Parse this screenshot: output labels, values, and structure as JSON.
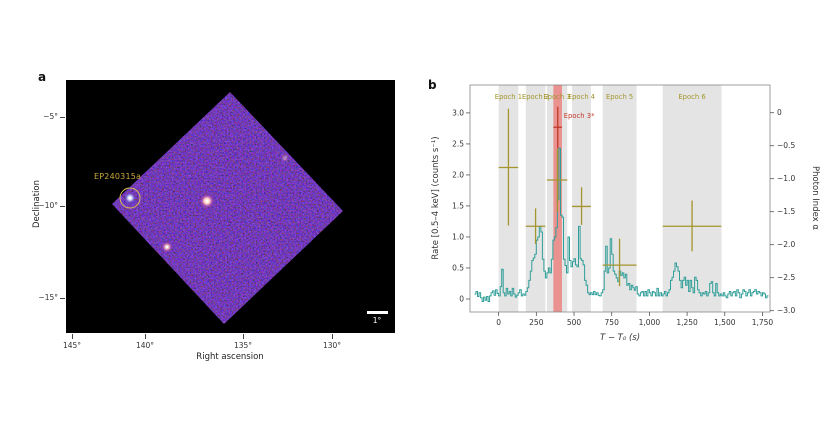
{
  "figure": {
    "panel_a": {
      "label": "a",
      "source_label": "EP240315a",
      "scale_bar_label": "1°",
      "x_axis_label": "Right ascension",
      "y_axis_label": "Declination",
      "x_ticks": [
        "145°",
        "140°",
        "135°",
        "130°"
      ],
      "y_ticks": [
        "−5°",
        "−10°",
        "−15°"
      ],
      "colors": {
        "background": "#000000",
        "field_blue": "#1b1b8f",
        "annotation_yellow": "#c9a83e"
      }
    },
    "panel_b": {
      "label": "b"
    }
  },
  "chart_data": {
    "type": "line",
    "subtype": "step-light-curve-with-photon-index-errorbars",
    "title": "",
    "xlabel": "T − T₀ (s)",
    "ylabel_left": "Rate [0.5–4 keV] (counts s⁻¹)",
    "ylabel_right": "Photon Index α",
    "xlim": [
      -190,
      1800
    ],
    "ylim_left": [
      -0.21,
      3.45
    ],
    "ylim_right": [
      -3.02,
      0.42
    ],
    "x_ticks": [
      0,
      250,
      500,
      750,
      1000,
      1250,
      1500,
      1750
    ],
    "x_tick_labels": [
      "0",
      "250",
      "500",
      "750",
      "1,000",
      "1,250",
      "1,500",
      "1,750"
    ],
    "y_ticks_left": [
      0,
      0.5,
      1.0,
      1.5,
      2.0,
      2.5,
      3.0
    ],
    "y_tick_labels_left": [
      "0",
      "0.5",
      "1.0",
      "1.5",
      "2.0",
      "2.5",
      "3.0"
    ],
    "y_ticks_right": [
      0,
      -0.5,
      -1.0,
      -1.5,
      -2.0,
      -2.5,
      -3.0
    ],
    "y_tick_labels_right": [
      "0",
      "−0.5",
      "−1.0",
      "−1.5",
      "−2.0",
      "−2.5",
      "−3.0"
    ],
    "grid": false,
    "legend": "none",
    "epochs": [
      {
        "label": "Epoch 1",
        "t_start": 0,
        "t_end": 130,
        "t_center": 65,
        "alpha": -0.83,
        "alpha_lo": -1.71,
        "alpha_hi": 0.06
      },
      {
        "label": "Epoch 2",
        "t_start": 180,
        "t_end": 310,
        "t_center": 245,
        "alpha": -1.72,
        "alpha_lo": -1.99,
        "alpha_hi": -1.45
      },
      {
        "label": "Epoch 3",
        "t_start": 320,
        "t_end": 455,
        "t_center": 390,
        "alpha": -1.02,
        "alpha_lo": -1.5,
        "alpha_hi": -0.55
      },
      {
        "label": "Epoch 4",
        "t_start": 487,
        "t_end": 612,
        "t_center": 550,
        "alpha": -1.42,
        "alpha_lo": -1.7,
        "alpha_hi": -1.13
      },
      {
        "label": "Epoch 5",
        "t_start": 690,
        "t_end": 915,
        "t_center": 802,
        "alpha": -2.31,
        "alpha_lo": -2.63,
        "alpha_hi": -1.91
      },
      {
        "label": "Epoch 6",
        "t_start": 1088,
        "t_end": 1478,
        "t_center": 1283,
        "alpha": -1.72,
        "alpha_lo": -2.1,
        "alpha_hi": -1.33
      }
    ],
    "epoch3_star": {
      "label": "Epoch 3*",
      "t_start": 363,
      "t_end": 420,
      "t_center": 392,
      "alpha": -0.22,
      "alpha_lo": -0.54,
      "alpha_hi": 0.09
    },
    "lightcurve_bin_s": 10,
    "lightcurve_points": [
      [
        -160,
        0.08
      ],
      [
        -150,
        0.12
      ],
      [
        -140,
        0.04
      ],
      [
        -130,
        0.1
      ],
      [
        -120,
        0.02
      ],
      [
        -110,
        -0.04
      ],
      [
        -100,
        0.03
      ],
      [
        -90,
        -0.02
      ],
      [
        -80,
        0.04
      ],
      [
        -70,
        -0.04
      ],
      [
        -60,
        0.05
      ],
      [
        -50,
        0.1
      ],
      [
        -40,
        0.13
      ],
      [
        -30,
        0.06
      ],
      [
        -20,
        0.15
      ],
      [
        -10,
        0.09
      ],
      [
        0,
        0.05
      ],
      [
        10,
        0.2
      ],
      [
        20,
        0.48
      ],
      [
        30,
        0.1
      ],
      [
        40,
        0.05
      ],
      [
        50,
        0.17
      ],
      [
        60,
        0.08
      ],
      [
        70,
        0.12
      ],
      [
        80,
        0.05
      ],
      [
        90,
        0.17
      ],
      [
        100,
        0.08
      ],
      [
        110,
        0.03
      ],
      [
        120,
        0.06
      ],
      [
        130,
        0.1
      ],
      [
        140,
        0.15
      ],
      [
        150,
        0.05
      ],
      [
        160,
        0.08
      ],
      [
        170,
        0.06
      ],
      [
        180,
        0.12
      ],
      [
        190,
        0.18
      ],
      [
        200,
        0.3
      ],
      [
        210,
        0.45
      ],
      [
        220,
        0.62
      ],
      [
        230,
        0.66
      ],
      [
        240,
        0.72
      ],
      [
        250,
        0.95
      ],
      [
        260,
        1.0
      ],
      [
        270,
        1.17
      ],
      [
        280,
        1.08
      ],
      [
        290,
        0.64
      ],
      [
        300,
        0.45
      ],
      [
        310,
        0.34
      ],
      [
        320,
        0.42
      ],
      [
        330,
        0.5
      ],
      [
        340,
        0.42
      ],
      [
        350,
        0.64
      ],
      [
        360,
        0.95
      ],
      [
        370,
        1.0
      ],
      [
        380,
        1.15
      ],
      [
        390,
        1.6
      ],
      [
        400,
        2.43
      ],
      [
        410,
        1.35
      ],
      [
        420,
        1.32
      ],
      [
        430,
        0.64
      ],
      [
        440,
        0.54
      ],
      [
        450,
        0.42
      ],
      [
        460,
        1.0
      ],
      [
        470,
        0.62
      ],
      [
        480,
        0.52
      ],
      [
        490,
        0.6
      ],
      [
        500,
        0.65
      ],
      [
        510,
        0.55
      ],
      [
        520,
        0.52
      ],
      [
        530,
        1.17
      ],
      [
        540,
        0.65
      ],
      [
        550,
        0.62
      ],
      [
        560,
        0.55
      ],
      [
        570,
        0.3
      ],
      [
        580,
        0.22
      ],
      [
        590,
        0.1
      ],
      [
        600,
        0.07
      ],
      [
        610,
        0.1
      ],
      [
        620,
        0.07
      ],
      [
        630,
        0.12
      ],
      [
        640,
        0.07
      ],
      [
        650,
        0.1
      ],
      [
        660,
        0.06
      ],
      [
        670,
        0.05
      ],
      [
        680,
        0.1
      ],
      [
        690,
        0.15
      ],
      [
        700,
        0.45
      ],
      [
        710,
        0.85
      ],
      [
        720,
        0.42
      ],
      [
        730,
        0.5
      ],
      [
        740,
        0.97
      ],
      [
        750,
        0.72
      ],
      [
        760,
        0.45
      ],
      [
        770,
        0.4
      ],
      [
        780,
        0.34
      ],
      [
        790,
        0.28
      ],
      [
        800,
        0.45
      ],
      [
        810,
        0.38
      ],
      [
        820,
        0.42
      ],
      [
        830,
        0.34
      ],
      [
        840,
        0.4
      ],
      [
        850,
        0.22
      ],
      [
        860,
        0.25
      ],
      [
        870,
        0.15
      ],
      [
        880,
        0.22
      ],
      [
        890,
        0.18
      ],
      [
        900,
        0.14
      ],
      [
        910,
        0.2
      ],
      [
        920,
        0.08
      ],
      [
        930,
        0.05
      ],
      [
        940,
        0.1
      ],
      [
        950,
        0.12
      ],
      [
        960,
        0.05
      ],
      [
        970,
        0.12
      ],
      [
        980,
        0.05
      ],
      [
        990,
        0.15
      ],
      [
        1000,
        0.1
      ],
      [
        1010,
        0.05
      ],
      [
        1020,
        0.12
      ],
      [
        1030,
        0.1
      ],
      [
        1040,
        0.05
      ],
      [
        1050,
        0.17
      ],
      [
        1060,
        0.05
      ],
      [
        1070,
        0.1
      ],
      [
        1080,
        0.05
      ],
      [
        1090,
        0.08
      ],
      [
        1100,
        0.12
      ],
      [
        1110,
        0.05
      ],
      [
        1120,
        0.1
      ],
      [
        1130,
        0.15
      ],
      [
        1140,
        0.3
      ],
      [
        1150,
        0.35
      ],
      [
        1160,
        0.45
      ],
      [
        1170,
        0.58
      ],
      [
        1180,
        0.52
      ],
      [
        1190,
        0.45
      ],
      [
        1200,
        0.3
      ],
      [
        1210,
        0.18
      ],
      [
        1220,
        0.3
      ],
      [
        1230,
        0.35
      ],
      [
        1240,
        0.22
      ],
      [
        1250,
        0.3
      ],
      [
        1260,
        0.12
      ],
      [
        1270,
        0.3
      ],
      [
        1280,
        0.18
      ],
      [
        1290,
        0.1
      ],
      [
        1300,
        0.35
      ],
      [
        1310,
        0.3
      ],
      [
        1320,
        0.15
      ],
      [
        1330,
        0.1
      ],
      [
        1340,
        0.05
      ],
      [
        1350,
        0.1
      ],
      [
        1360,
        0.08
      ],
      [
        1370,
        0.12
      ],
      [
        1380,
        0.05
      ],
      [
        1390,
        0.1
      ],
      [
        1400,
        0.25
      ],
      [
        1410,
        0.28
      ],
      [
        1420,
        0.1
      ],
      [
        1430,
        0.05
      ],
      [
        1440,
        0.25
      ],
      [
        1450,
        0.1
      ],
      [
        1460,
        0.05
      ],
      [
        1470,
        0.08
      ],
      [
        1480,
        0.05
      ],
      [
        1490,
        0.1
      ],
      [
        1500,
        0.05
      ],
      [
        1510,
        0.02
      ],
      [
        1520,
        0.08
      ],
      [
        1530,
        0.12
      ],
      [
        1540,
        0.05
      ],
      [
        1550,
        0.1
      ],
      [
        1560,
        0.12
      ],
      [
        1570,
        0.05
      ],
      [
        1580,
        0.15
      ],
      [
        1590,
        0.1
      ],
      [
        1600,
        0.02
      ],
      [
        1610,
        0.08
      ],
      [
        1620,
        0.15
      ],
      [
        1630,
        0.12
      ],
      [
        1640,
        0.05
      ],
      [
        1650,
        0.1
      ],
      [
        1660,
        0.15
      ],
      [
        1670,
        0.05
      ],
      [
        1680,
        0.1
      ],
      [
        1690,
        0.12
      ],
      [
        1700,
        0.15
      ],
      [
        1710,
        0.08
      ],
      [
        1720,
        0.12
      ],
      [
        1730,
        0.1
      ],
      [
        1740,
        0.05
      ],
      [
        1750,
        0.1
      ],
      [
        1760,
        0.08
      ],
      [
        1770,
        0.02
      ],
      [
        1780,
        0.05
      ]
    ],
    "colors": {
      "lightcurve": "#2f9e98",
      "photon_index": "#a3952c",
      "epoch_band": "#e4e4e4",
      "epoch3_star_band": "#e9928f",
      "epoch3_star_accent": "#c0392b",
      "axis_text": "#333333",
      "frame": "#888888"
    }
  }
}
